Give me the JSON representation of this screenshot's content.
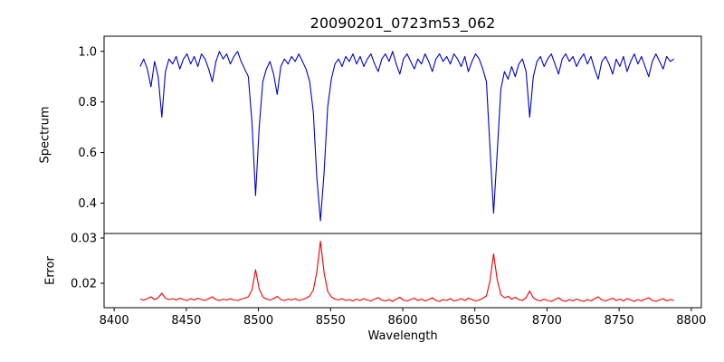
{
  "figure": {
    "background": "#ffffff"
  },
  "chart_data": {
    "type": "line",
    "title": "20090201_0723m53_062",
    "xlabel": "Wavelength",
    "grid": false,
    "legend": "none",
    "xlim": [
      8393,
      8807
    ],
    "xticks": [
      8400,
      8450,
      8500,
      8550,
      8600,
      8650,
      8700,
      8750,
      8800
    ],
    "x_start": 8418,
    "x_step": 2.5,
    "n_points": 149,
    "panels": [
      {
        "ylabel": "Spectrum",
        "color": "#0000cd",
        "ylim": [
          0.28,
          1.06
        ],
        "yticks": [
          0.4,
          0.6,
          0.8,
          1.0
        ],
        "ytick_decimals": 1,
        "description": "Normalized stellar spectrum near the Ca II infrared triplet; deep absorption lines at ~8498, ~8542 and ~8662 Angstrom",
        "values": [
          0.94,
          0.97,
          0.93,
          0.86,
          0.96,
          0.9,
          0.74,
          0.92,
          0.97,
          0.95,
          0.98,
          0.93,
          0.97,
          0.99,
          0.95,
          0.98,
          0.94,
          0.99,
          0.97,
          0.93,
          0.88,
          0.96,
          1.0,
          0.97,
          0.99,
          0.95,
          0.98,
          1.0,
          0.96,
          0.93,
          0.9,
          0.72,
          0.43,
          0.7,
          0.88,
          0.93,
          0.96,
          0.91,
          0.83,
          0.94,
          0.97,
          0.95,
          0.98,
          0.96,
          0.99,
          0.96,
          0.93,
          0.88,
          0.76,
          0.5,
          0.33,
          0.52,
          0.78,
          0.89,
          0.95,
          0.97,
          0.94,
          0.98,
          0.96,
          0.99,
          0.95,
          0.98,
          0.94,
          0.97,
          0.99,
          0.95,
          0.92,
          0.97,
          0.99,
          0.96,
          1.0,
          0.95,
          0.91,
          0.97,
          0.99,
          0.96,
          0.93,
          0.97,
          0.95,
          0.99,
          0.96,
          0.92,
          0.97,
          0.99,
          0.96,
          0.98,
          0.95,
          0.99,
          0.97,
          0.94,
          0.98,
          0.92,
          0.96,
          0.99,
          0.97,
          0.93,
          0.88,
          0.62,
          0.36,
          0.6,
          0.85,
          0.92,
          0.89,
          0.94,
          0.9,
          0.95,
          0.97,
          0.92,
          0.74,
          0.9,
          0.96,
          0.98,
          0.94,
          0.97,
          0.99,
          0.95,
          0.91,
          0.97,
          0.99,
          0.96,
          0.98,
          0.94,
          0.97,
          0.99,
          0.95,
          0.98,
          0.93,
          0.89,
          0.96,
          0.98,
          0.95,
          0.91,
          0.97,
          0.94,
          0.98,
          0.92,
          0.96,
          0.99,
          0.95,
          0.98,
          0.94,
          0.9,
          0.96,
          0.99,
          0.96,
          0.93,
          0.98,
          0.96,
          0.97
        ]
      },
      {
        "ylabel": "Error",
        "color": "#ee0000",
        "ylim": [
          0.0146,
          0.031
        ],
        "yticks": [
          0.02,
          0.03
        ],
        "ytick_decimals": 2,
        "description": "Error spectrum; baseline ~0.0165 with peaks at the absorption-line wavelengths (~0.023 at 8498, ~0.029 at 8542, ~0.027 at 8662)",
        "values": [
          0.0165,
          0.0163,
          0.0166,
          0.017,
          0.0164,
          0.0168,
          0.0178,
          0.0167,
          0.0164,
          0.0166,
          0.0163,
          0.0167,
          0.0164,
          0.0162,
          0.0166,
          0.0163,
          0.0167,
          0.0164,
          0.0162,
          0.0166,
          0.017,
          0.0164,
          0.0162,
          0.0165,
          0.0163,
          0.0166,
          0.0163,
          0.0162,
          0.0165,
          0.0167,
          0.017,
          0.0185,
          0.023,
          0.0188,
          0.017,
          0.0165,
          0.0163,
          0.0166,
          0.0171,
          0.0164,
          0.0162,
          0.0165,
          0.0163,
          0.0166,
          0.0162,
          0.0164,
          0.0167,
          0.0172,
          0.0185,
          0.0225,
          0.0293,
          0.0224,
          0.0182,
          0.017,
          0.0165,
          0.0163,
          0.0166,
          0.0162,
          0.0164,
          0.0161,
          0.0165,
          0.0162,
          0.0166,
          0.0163,
          0.0161,
          0.0165,
          0.0168,
          0.0163,
          0.0161,
          0.0164,
          0.016,
          0.0165,
          0.0169,
          0.0163,
          0.0161,
          0.0164,
          0.0167,
          0.0162,
          0.0165,
          0.0161,
          0.0164,
          0.0168,
          0.0162,
          0.016,
          0.0164,
          0.0162,
          0.0166,
          0.0161,
          0.0163,
          0.0166,
          0.0162,
          0.0167,
          0.0164,
          0.0161,
          0.0163,
          0.0167,
          0.0172,
          0.0205,
          0.0265,
          0.0208,
          0.0175,
          0.0168,
          0.0171,
          0.0165,
          0.0169,
          0.0164,
          0.0162,
          0.0168,
          0.0183,
          0.0168,
          0.0163,
          0.0161,
          0.0165,
          0.0162,
          0.016,
          0.0164,
          0.0168,
          0.0162,
          0.016,
          0.0164,
          0.0161,
          0.0165,
          0.0162,
          0.016,
          0.0164,
          0.0161,
          0.0166,
          0.017,
          0.0163,
          0.0161,
          0.0164,
          0.0167,
          0.0162,
          0.0165,
          0.0161,
          0.0166,
          0.0163,
          0.016,
          0.0164,
          0.0161,
          0.0165,
          0.0168,
          0.0162,
          0.016,
          0.0163,
          0.0166,
          0.0161,
          0.0164,
          0.0162
        ]
      }
    ]
  }
}
